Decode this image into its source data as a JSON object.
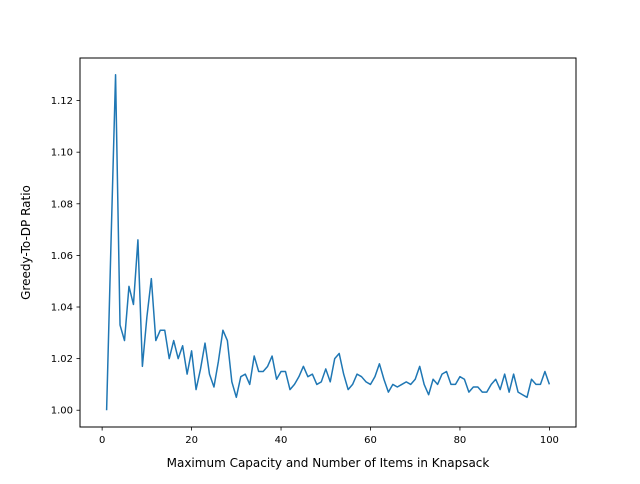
{
  "chart_data": {
    "type": "line",
    "title": "",
    "xlabel": "Maximum Capacity and Number of Items in Knapsack",
    "ylabel": "Greedy-To-DP Ratio",
    "xlim": [
      -4.95,
      105.95
    ],
    "ylim": [
      0.9935,
      1.1365
    ],
    "xticks": [
      0,
      20,
      40,
      60,
      80,
      100
    ],
    "yticks": [
      1.0,
      1.02,
      1.04,
      1.06,
      1.08,
      1.1,
      1.12
    ],
    "xtick_labels": [
      "0",
      "20",
      "40",
      "60",
      "80",
      "100"
    ],
    "ytick_labels": [
      "1.00",
      "1.02",
      "1.04",
      "1.06",
      "1.08",
      "1.10",
      "1.12"
    ],
    "grid": false,
    "line_color": "#1f77b4",
    "series": [
      {
        "x": [
          1,
          2,
          3,
          4,
          5,
          6,
          7,
          8,
          9,
          10,
          11,
          12,
          13,
          14,
          15,
          16,
          17,
          18,
          19,
          20,
          21,
          22,
          23,
          24,
          25,
          26,
          27,
          28,
          29,
          30,
          31,
          32,
          33,
          34,
          35,
          36,
          37,
          38,
          39,
          40,
          41,
          42,
          43,
          44,
          45,
          46,
          47,
          48,
          49,
          50,
          51,
          52,
          53,
          54,
          55,
          56,
          57,
          58,
          59,
          60,
          61,
          62,
          63,
          64,
          65,
          66,
          67,
          68,
          69,
          70,
          71,
          72,
          73,
          74,
          75,
          76,
          77,
          78,
          79,
          80,
          81,
          82,
          83,
          84,
          85,
          86,
          87,
          88,
          89,
          90,
          91,
          92,
          93,
          94,
          95,
          96,
          97,
          98,
          99,
          100
        ],
        "y": [
          1.0,
          1.066,
          1.13,
          1.033,
          1.027,
          1.048,
          1.041,
          1.066,
          1.017,
          1.036,
          1.051,
          1.027,
          1.031,
          1.031,
          1.02,
          1.027,
          1.02,
          1.025,
          1.014,
          1.023,
          1.008,
          1.016,
          1.026,
          1.014,
          1.009,
          1.019,
          1.031,
          1.027,
          1.011,
          1.005,
          1.013,
          1.014,
          1.01,
          1.021,
          1.015,
          1.015,
          1.017,
          1.021,
          1.012,
          1.015,
          1.015,
          1.008,
          1.01,
          1.013,
          1.017,
          1.013,
          1.014,
          1.01,
          1.011,
          1.016,
          1.011,
          1.02,
          1.022,
          1.014,
          1.008,
          1.01,
          1.014,
          1.013,
          1.011,
          1.01,
          1.013,
          1.018,
          1.012,
          1.007,
          1.01,
          1.009,
          1.01,
          1.011,
          1.01,
          1.012,
          1.017,
          1.01,
          1.006,
          1.012,
          1.01,
          1.014,
          1.015,
          1.01,
          1.01,
          1.013,
          1.012,
          1.007,
          1.009,
          1.009,
          1.007,
          1.007,
          1.01,
          1.012,
          1.008,
          1.014,
          1.007,
          1.014,
          1.007,
          1.006,
          1.005,
          1.012,
          1.01,
          1.01,
          1.015,
          1.01
        ]
      }
    ]
  }
}
